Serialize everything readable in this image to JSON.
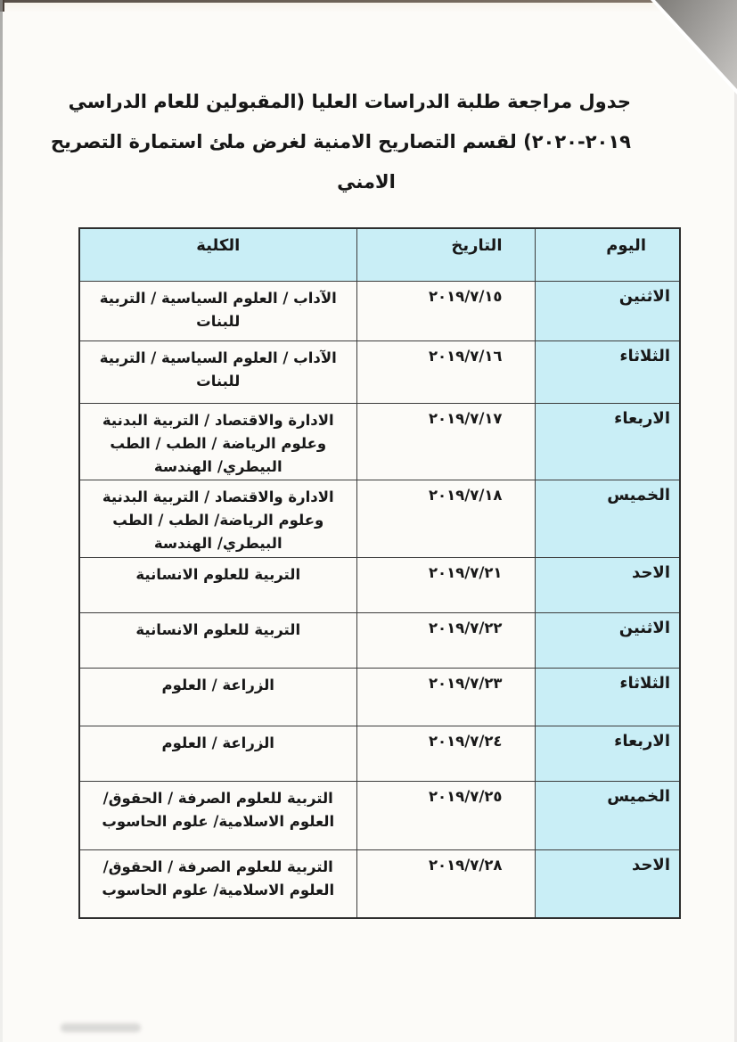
{
  "document": {
    "title_lines": [
      "جدول مراجعة طلبة الدراسات العليا (المقبولين للعام الدراسي",
      "٢٠١٩-٢٠٢٠) لقسم التصاريح الامنية لغرض ملئ استمارة التصريح",
      "الامني"
    ]
  },
  "table": {
    "headers": {
      "day": "اليوم",
      "date": "التاريخ",
      "college": "الكلية"
    },
    "rows": [
      {
        "day": "الاثنين",
        "date": "٢٠١٩/٧/١٥",
        "college": "الآداب / العلوم السياسية / التربية للبنات"
      },
      {
        "day": "الثلاثاء",
        "date": "٢٠١٩/٧/١٦",
        "college": "الآداب / العلوم السياسية / التربية للبنات"
      },
      {
        "day": "الاربعاء",
        "date": "٢٠١٩/٧/١٧",
        "college": "الادارة والاقتصاد / التربية البدنية وعلوم الرياضة / الطب / الطب البيطري/ الهندسة"
      },
      {
        "day": "الخميس",
        "date": "٢٠١٩/٧/١٨",
        "college": "الادارة والاقتصاد / التربية البدنية وعلوم الرياضة/ الطب / الطب البيطري/ الهندسة"
      },
      {
        "day": "الاحد",
        "date": "٢٠١٩/٧/٢١",
        "college": "التربية للعلوم الانسانية"
      },
      {
        "day": "الاثنين",
        "date": "٢٠١٩/٧/٢٢",
        "college": "التربية للعلوم الانسانية"
      },
      {
        "day": "الثلاثاء",
        "date": "٢٠١٩/٧/٢٣",
        "college": "الزراعة / العلوم"
      },
      {
        "day": "الاربعاء",
        "date": "٢٠١٩/٧/٢٤",
        "college": "الزراعة / العلوم"
      },
      {
        "day": "الخميس",
        "date": "٢٠١٩/٧/٢٥",
        "college": "التربية للعلوم الصرفة / الحقوق/ العلوم الاسلامية/ علوم الحاسوب"
      },
      {
        "day": "الاحد",
        "date": "٢٠١٩/٧/٢٨",
        "college": "التربية للعلوم الصرفة / الحقوق/ العلوم الاسلامية/ علوم الحاسوب"
      }
    ]
  },
  "colors": {
    "cell_highlight": "#c9eef6",
    "border": "#3c3c3c",
    "text": "#1b1b1b"
  }
}
